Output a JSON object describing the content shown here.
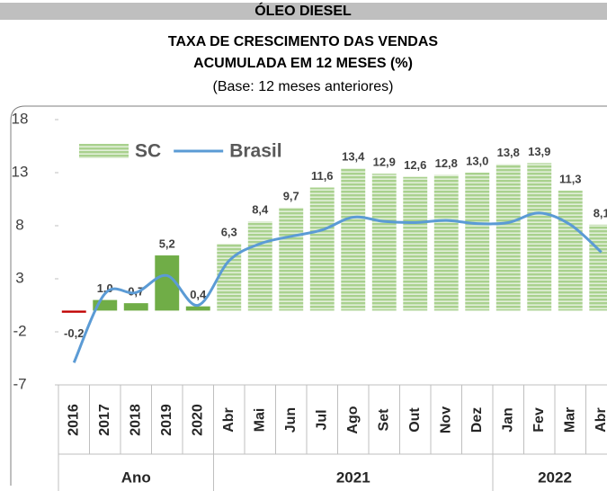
{
  "chart_data": {
    "type": "bar_line",
    "header": "ÓLEO DIESEL",
    "title": [
      "TAXA DE CRESCIMENTO DAS VENDAS",
      "ACUMULADA EM 12 MESES (%)"
    ],
    "subtitle": "(Base: 12 meses anteriores)",
    "categories": [
      "2016",
      "2017",
      "2018",
      "2019",
      "2020",
      "Abr",
      "Mai",
      "Jun",
      "Jul",
      "Ago",
      "Set",
      "Out",
      "Nov",
      "Dez",
      "Jan",
      "Fev",
      "Mar",
      "Abr"
    ],
    "groups": [
      {
        "name": "Ano",
        "count": 5
      },
      {
        "name": "2021",
        "count": 9
      },
      {
        "name": "2022",
        "count": 4
      }
    ],
    "series": [
      {
        "name": "SC",
        "kind": "bar",
        "color": "#a9d18e",
        "bar_colors": [
          "#c00000",
          "#70ad47",
          "#70ad47",
          "#70ad47",
          "#70ad47",
          "#a9d18e",
          "#a9d18e",
          "#a9d18e",
          "#a9d18e",
          "#a9d18e",
          "#a9d18e",
          "#a9d18e",
          "#a9d18e",
          "#a9d18e",
          "#a9d18e",
          "#a9d18e",
          "#a9d18e",
          "#a9d18e"
        ],
        "bar_styles": [
          "solid",
          "solid",
          "solid",
          "solid",
          "solid",
          "striped",
          "striped",
          "striped",
          "striped",
          "striped",
          "striped",
          "striped",
          "striped",
          "striped",
          "striped",
          "striped",
          "striped",
          "striped"
        ],
        "values": [
          -0.2,
          1.0,
          0.7,
          5.2,
          0.4,
          6.3,
          8.4,
          9.7,
          11.6,
          13.4,
          12.9,
          12.6,
          12.8,
          13.0,
          13.8,
          13.9,
          11.3,
          8.1
        ],
        "value_labels": [
          "-0,2",
          "1,0",
          "0,7",
          "5,2",
          "0,4",
          "6,3",
          "8,4",
          "9,7",
          "11,6",
          "13,4",
          "12,9",
          "12,6",
          "12,8",
          "13,0",
          "13,8",
          "13,9",
          "11,3",
          "8,1"
        ]
      },
      {
        "name": "Brasil",
        "kind": "line",
        "color": "#5b9bd5",
        "smooth": true,
        "values": [
          -4.9,
          1.6,
          1.7,
          3.3,
          0.5,
          4.7,
          6.3,
          7.0,
          7.6,
          8.8,
          8.4,
          8.3,
          8.5,
          8.2,
          8.3,
          9.2,
          8.1,
          5.5
        ]
      }
    ],
    "ylim": [
      -7,
      18
    ],
    "yticks": [
      -7,
      -2,
      3,
      8,
      13,
      18
    ],
    "grid": false
  }
}
